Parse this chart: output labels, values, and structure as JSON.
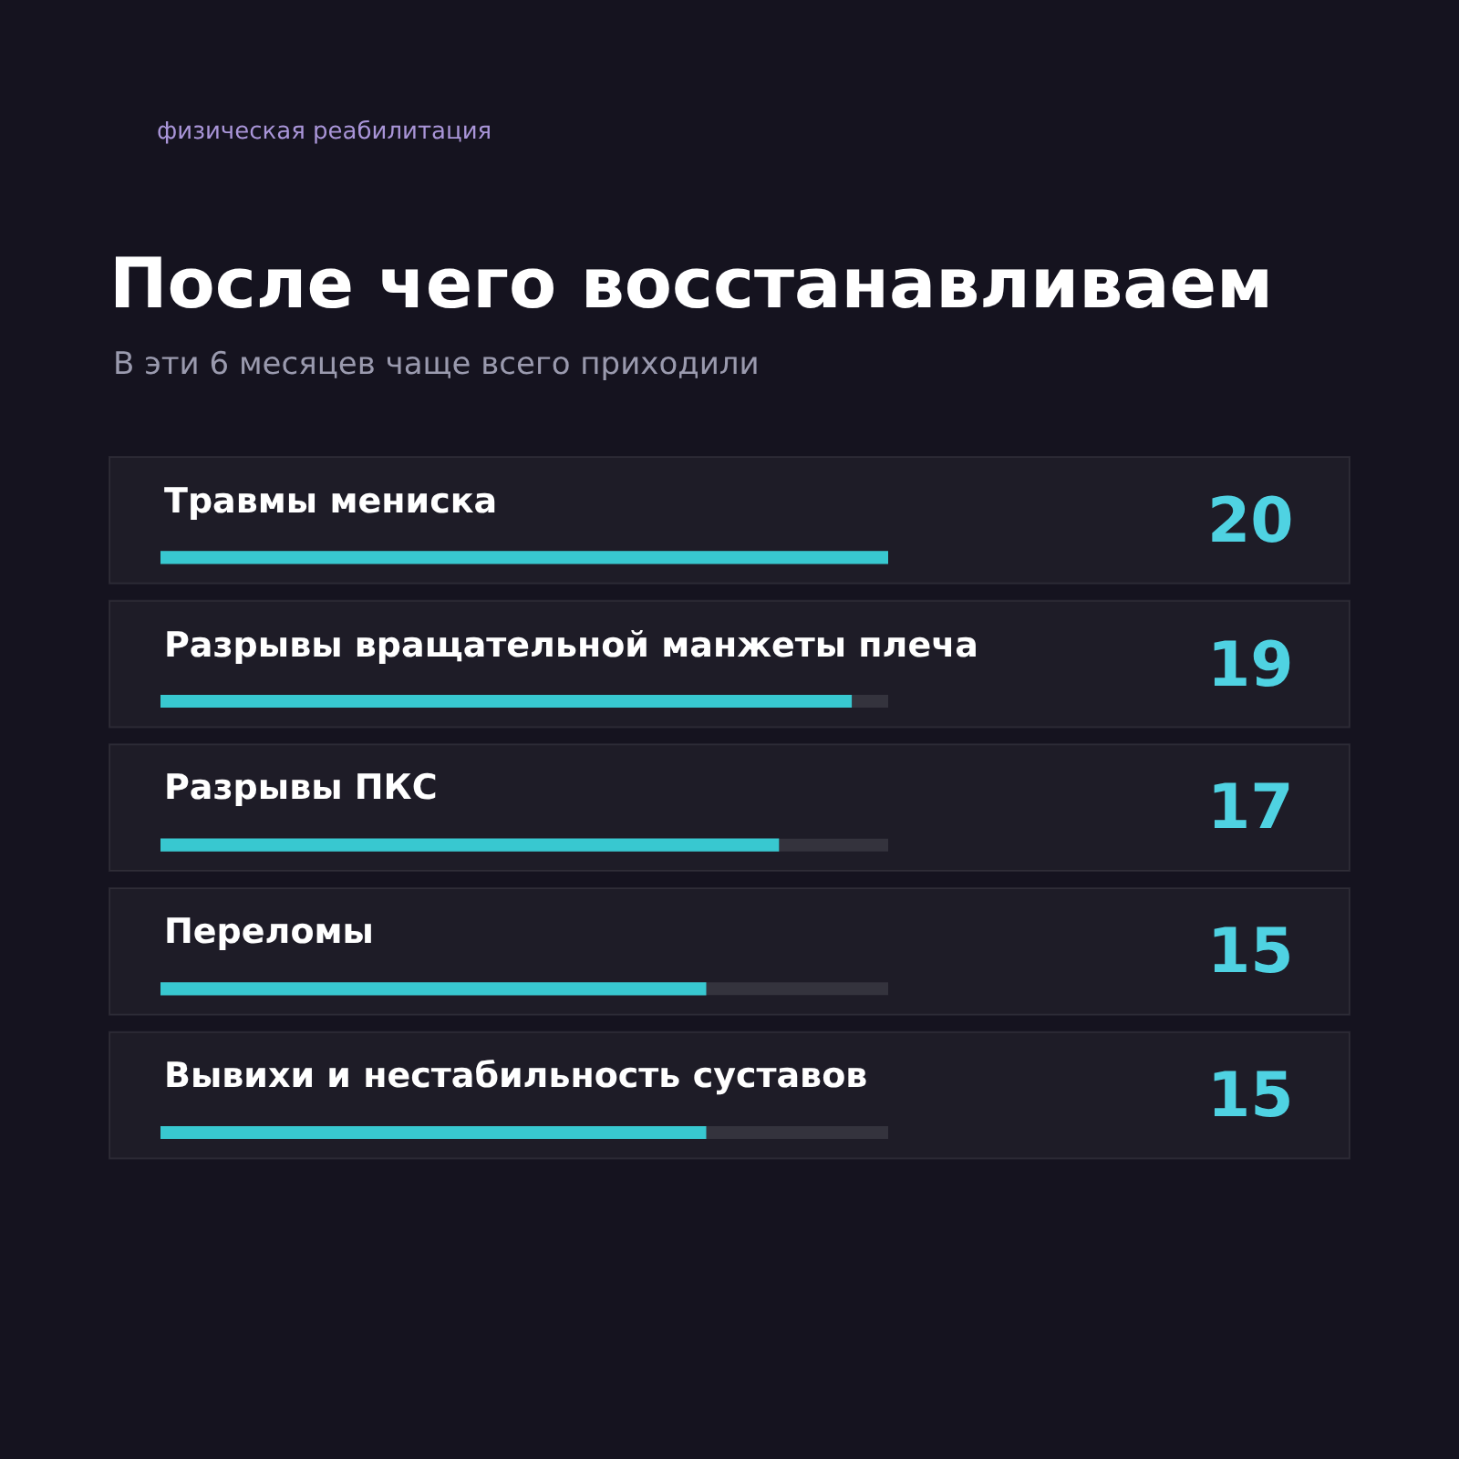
{
  "chart_data": {
    "type": "bar",
    "orientation": "horizontal",
    "title": "После чего восстанавливаем",
    "subtitle": "В эти 6 месяцев чаще всего приходили",
    "annotations": [
      "физическая реабилитация"
    ],
    "categories": [
      "Травмы мениска",
      "Разрывы вращательной манжеты плеча",
      "Разрывы ПКС",
      "Переломы",
      "Вывихи и нестабильность суставов"
    ],
    "values": [
      20,
      19,
      17,
      15,
      15
    ],
    "color": "#38c8d0",
    "xlim": [
      0,
      20
    ],
    "tick_labels": false,
    "grid": false,
    "legend": false,
    "data_labels": true
  }
}
